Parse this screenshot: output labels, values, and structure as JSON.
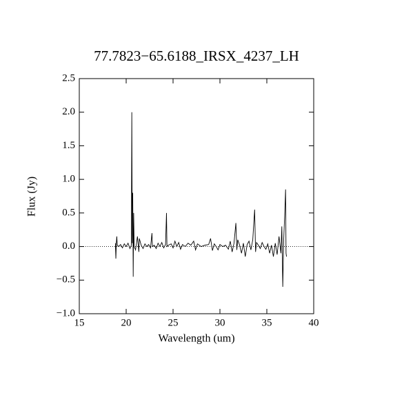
{
  "chart_data": {
    "type": "line",
    "title": "77.7823−65.6188_IRSX_4237_LH",
    "x_label": "Wavelength (um)",
    "y_label": "Flux (Jy)",
    "color": "#000000",
    "zero_line": true,
    "xlim": [
      15,
      40
    ],
    "xticks": [
      15,
      20,
      25,
      30,
      35,
      40
    ],
    "ylim": [
      -1.0,
      2.5
    ],
    "yticks": [
      {
        "value": -1.0,
        "label": "−1.0"
      },
      {
        "value": -0.5,
        "label": "−0.5"
      },
      {
        "value": 0,
        "label": "0.0"
      },
      0.5,
      {
        "value": 1.0,
        "label": "1.0"
      },
      1.5,
      {
        "value": 2.0,
        "label": "2.0"
      },
      2.5
    ],
    "x": [
      18.85,
      18.9,
      18.95,
      19.0,
      19.05,
      19.2,
      19.4,
      19.6,
      19.8,
      20.0,
      20.2,
      20.4,
      20.55,
      20.6,
      20.65,
      20.7,
      20.75,
      20.8,
      20.85,
      21.0,
      21.2,
      21.35,
      21.4,
      21.6,
      21.8,
      22.0,
      22.2,
      22.4,
      22.6,
      22.75,
      22.8,
      23.0,
      23.2,
      23.4,
      23.6,
      23.8,
      24.0,
      24.2,
      24.3,
      24.35,
      24.5,
      24.8,
      25.0,
      25.2,
      25.4,
      25.6,
      25.8,
      26.0,
      26.3,
      26.6,
      26.9,
      27.2,
      27.4,
      27.6,
      28.0,
      28.4,
      28.8,
      29.0,
      29.2,
      29.4,
      29.6,
      29.8,
      30.0,
      30.3,
      30.6,
      30.9,
      31.1,
      31.3,
      31.5,
      31.7,
      31.8,
      31.9,
      32.1,
      32.3,
      32.5,
      32.7,
      32.9,
      33.1,
      33.3,
      33.5,
      33.7,
      33.8,
      33.9,
      34.1,
      34.3,
      34.5,
      34.7,
      34.9,
      35.1,
      35.3,
      35.5,
      35.7,
      35.9,
      36.1,
      36.3,
      36.5,
      36.6,
      36.7,
      36.8,
      36.9,
      37.0,
      37.05,
      37.1
    ],
    "y": [
      0.05,
      -0.18,
      0.05,
      0.15,
      0.02,
      0.0,
      0.03,
      -0.02,
      0.04,
      0.0,
      0.05,
      -0.03,
      0.02,
      2.0,
      0.05,
      0.8,
      -0.45,
      0.5,
      0.0,
      -0.05,
      0.15,
      -0.08,
      0.12,
      0.02,
      -0.03,
      0.04,
      0.0,
      0.03,
      -0.02,
      0.2,
      0.0,
      0.02,
      -0.03,
      0.05,
      0.0,
      0.06,
      -0.02,
      0.03,
      0.5,
      0.0,
      0.02,
      0.04,
      -0.02,
      0.08,
      0.0,
      0.06,
      -0.04,
      0.03,
      0.0,
      0.05,
      0.02,
      0.08,
      -0.05,
      0.04,
      0.0,
      0.02,
      0.03,
      0.12,
      -0.06,
      0.04,
      0.0,
      -0.05,
      0.03,
      0.0,
      0.02,
      -0.04,
      0.08,
      -0.08,
      0.05,
      0.35,
      -0.05,
      0.1,
      0.02,
      -0.1,
      0.05,
      -0.15,
      0.03,
      0.08,
      -0.05,
      0.1,
      0.55,
      -0.08,
      0.06,
      0.02,
      -0.03,
      0.06,
      0.0,
      -0.04,
      0.04,
      -0.1,
      0.02,
      -0.15,
      0.05,
      -0.12,
      0.15,
      -0.1,
      0.3,
      -0.6,
      0.1,
      0.45,
      0.85,
      -0.1,
      -0.15
    ]
  }
}
